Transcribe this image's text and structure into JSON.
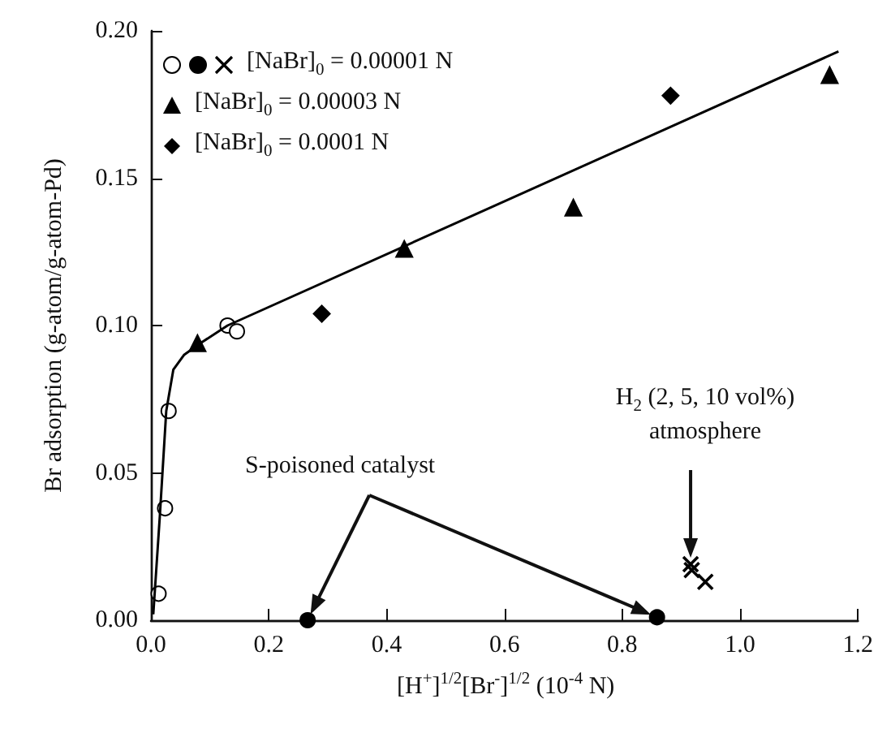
{
  "chart_data": {
    "type": "scatter",
    "xlabel": "[H$^{+}$]$^{1/2}$[Br$^{-}$]$^{1/2}$ (10$^{-4}$ N)",
    "ylabel": "Br adsorption (g-atom/g-atom-Pd)",
    "xlim": [
      0,
      1.2
    ],
    "ylim": [
      0,
      0.2
    ],
    "xticks": [
      {
        "value": 0,
        "label": "0.0"
      },
      {
        "value": 0.2,
        "label": "0.2"
      },
      {
        "value": 0.4,
        "label": "0.4"
      },
      {
        "value": 0.6,
        "label": "0.6"
      },
      {
        "value": 0.8,
        "label": "0.8"
      },
      {
        "value": 1,
        "label": "1.0"
      },
      {
        "value": 1.2,
        "label": "1.2"
      }
    ],
    "yticks": [
      {
        "value": 0,
        "label": "0.00"
      },
      {
        "value": 0.05,
        "label": "0.05"
      },
      {
        "value": 0.1,
        "label": "0.10"
      },
      {
        "value": 0.15,
        "label": "0.15"
      },
      {
        "value": 0.2,
        "label": "0.20"
      }
    ],
    "grid": false,
    "legend": "top left",
    "series": [
      {
        "name": "[NaBr]$_{0}$ = 0.00001 N",
        "marker": "circle",
        "color": "#ffffff",
        "x": [
          0.013,
          0.024,
          0.03,
          0.13,
          0.146
        ],
        "values": [
          0.009,
          0.038,
          0.071,
          0.1,
          0.098
        ]
      },
      {
        "marker": "circle",
        "color": "#000000",
        "x": [
          0.266,
          0.859
        ],
        "values": [
          0.0,
          0.001
        ]
      },
      {
        "marker": "cross",
        "color": "#000000",
        "x": [
          0.916,
          0.918,
          0.941
        ],
        "values": [
          0.019,
          0.017,
          0.013
        ]
      },
      {
        "name": "[NaBr]$_{0}$ = 0.00003 N",
        "marker": "triangle",
        "color": "#000000",
        "x": [
          0.079,
          0.43,
          0.717,
          1.152
        ],
        "values": [
          0.094,
          0.126,
          0.14,
          0.185
        ]
      },
      {
        "name": "[NaBr]$_{0}$ = 0.0001 N",
        "marker": "diamond",
        "color": "#000000",
        "x": [
          0.29,
          0.882
        ],
        "values": [
          0.104,
          0.178
        ]
      },
      {
        "type": "line",
        "marker": "none",
        "line_style": "solid",
        "color": "#000000",
        "x": [
          0.004,
          0.015,
          0.026,
          0.038,
          0.056,
          0.084,
          0.13,
          1.167
        ],
        "values": [
          0.002,
          0.035,
          0.071,
          0.085,
          0.09,
          0.094,
          0.1,
          0.193
        ]
      }
    ],
    "annotations": [
      {
        "text": "S-poisoned catalyst",
        "x": 0.266,
        "y": 0.0
      },
      {
        "text": "H$_{2}$ (2, 5, 10 vol%) atmosphere",
        "x": 0.916,
        "y": 0.019
      }
    ]
  }
}
